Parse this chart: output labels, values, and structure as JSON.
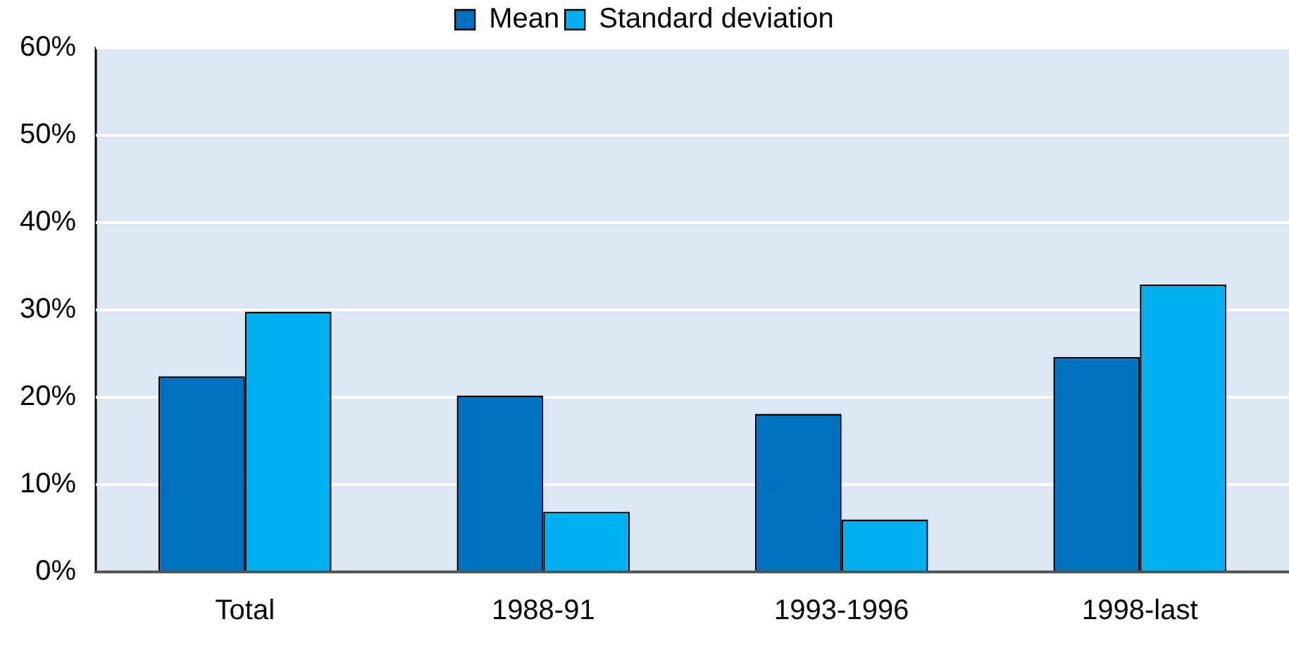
{
  "chart_data": {
    "type": "bar",
    "categories": [
      "Total",
      "1988-91",
      "1993-1996",
      "1998-last"
    ],
    "series": [
      {
        "name": "Mean",
        "color": "#0070c0",
        "values": [
          22.4,
          20.2,
          18.1,
          24.6
        ]
      },
      {
        "name": "Standard deviation",
        "color": "#00b0f0",
        "values": [
          29.8,
          6.9,
          6.0,
          32.9
        ]
      }
    ],
    "ylim": [
      0,
      60
    ],
    "yticks": [
      {
        "value": 0,
        "label": "0%"
      },
      {
        "value": 10,
        "label": "10%"
      },
      {
        "value": 20,
        "label": "20%"
      },
      {
        "value": 30,
        "label": "30%"
      },
      {
        "value": 40,
        "label": "40%"
      },
      {
        "value": 50,
        "label": "50%"
      },
      {
        "value": 60,
        "label": "60%"
      }
    ],
    "grid": "y",
    "legend": "top"
  }
}
